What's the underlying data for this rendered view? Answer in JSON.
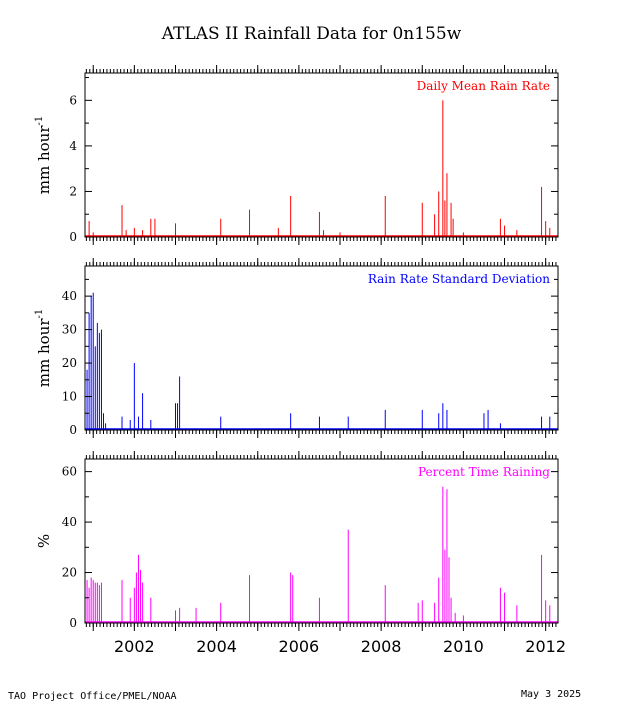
{
  "title": "ATLAS II Rainfall Data for 0n155w",
  "footer": {
    "left": "TAO Project Office/PMEL/NOAA",
    "right": "May  3 2025"
  },
  "chart_data": [
    {
      "type": "bar",
      "title": "Daily Mean Rain Rate",
      "ylabel": "mm hour",
      "ylabel_superscript": "-1",
      "color": "#ff0000",
      "ylim": [
        0,
        7.2
      ],
      "yticks": [
        0,
        2,
        4,
        6
      ],
      "xlim": [
        2000.8,
        2012.3
      ],
      "xticks": [
        "2002",
        "2004",
        "2006",
        "2008",
        "2010",
        "2012"
      ],
      "x": [
        2000.9,
        2001.0,
        2001.7,
        2001.8,
        2002.0,
        2002.2,
        2002.4,
        2002.5,
        2003.0,
        2004.1,
        2004.8,
        2005.5,
        2005.8,
        2006.5,
        2006.6,
        2007.0,
        2008.1,
        2009.0,
        2009.3,
        2009.4,
        2009.5,
        2009.55,
        2009.6,
        2009.7,
        2009.75,
        2010.0,
        2010.9,
        2011.0,
        2011.3,
        2011.9,
        2012.0,
        2012.1
      ],
      "values": [
        0.7,
        0.2,
        1.4,
        0.3,
        0.4,
        0.3,
        0.8,
        0.8,
        0.6,
        0.8,
        1.2,
        0.4,
        1.8,
        1.1,
        0.3,
        0.2,
        1.8,
        1.5,
        1.0,
        2.0,
        6.0,
        1.6,
        2.8,
        1.5,
        0.8,
        0.2,
        0.8,
        0.5,
        0.3,
        2.2,
        0.7,
        0.4
      ]
    },
    {
      "type": "bar",
      "title": "Rain Rate Standard Deviation",
      "ylabel": "mm hour",
      "ylabel_superscript": "-1",
      "color": "#0000ff",
      "ylim": [
        0,
        49
      ],
      "yticks": [
        0,
        10,
        20,
        30,
        40
      ],
      "xlim": [
        2000.8,
        2012.3
      ],
      "xticks": [
        "2002",
        "2004",
        "2006",
        "2008",
        "2010",
        "2012"
      ],
      "x": [
        2000.85,
        2000.9,
        2000.95,
        2001.0,
        2001.05,
        2001.1,
        2001.15,
        2001.2,
        2001.25,
        2001.3,
        2001.7,
        2001.9,
        2002.0,
        2002.1,
        2002.2,
        2002.4,
        2003.0,
        2003.05,
        2003.1,
        2004.1,
        2005.8,
        2006.5,
        2007.2,
        2008.1,
        2009.0,
        2009.4,
        2009.5,
        2009.6,
        2010.5,
        2010.6,
        2010.9,
        2011.9,
        2012.1
      ],
      "values": [
        18,
        35,
        40,
        41,
        25,
        32,
        29,
        30,
        5,
        2,
        4,
        3,
        20,
        4,
        11,
        3,
        8,
        8,
        16,
        4,
        5,
        4,
        4,
        6,
        6,
        5,
        8,
        6,
        5,
        6,
        2,
        4,
        4
      ]
    },
    {
      "type": "bar",
      "title": "Percent Time Raining",
      "ylabel": "%",
      "color": "#ff00ff",
      "ylim": [
        0,
        65
      ],
      "yticks": [
        0,
        20,
        40,
        60
      ],
      "xlim": [
        2000.8,
        2012.3
      ],
      "xticks": [
        "2002",
        "2004",
        "2006",
        "2008",
        "2010",
        "2012"
      ],
      "x": [
        2000.85,
        2000.9,
        2000.95,
        2001.0,
        2001.05,
        2001.1,
        2001.15,
        2001.2,
        2001.7,
        2001.9,
        2002.0,
        2002.05,
        2002.1,
        2002.15,
        2002.2,
        2002.4,
        2003.0,
        2003.1,
        2003.5,
        2004.1,
        2004.8,
        2005.8,
        2005.85,
        2006.5,
        2007.2,
        2008.1,
        2008.9,
        2009.0,
        2009.3,
        2009.4,
        2009.5,
        2009.55,
        2009.6,
        2009.65,
        2009.7,
        2009.8,
        2010.0,
        2010.9,
        2011.0,
        2011.3,
        2011.9,
        2012.0,
        2012.1
      ],
      "values": [
        17,
        14,
        18,
        17,
        16,
        16,
        15,
        16,
        17,
        10,
        14,
        20,
        27,
        21,
        16,
        10,
        5,
        6,
        6,
        8,
        19,
        20,
        19,
        10,
        37,
        15,
        8,
        9,
        8,
        18,
        54,
        29,
        53,
        26,
        10,
        4,
        3,
        14,
        12,
        7,
        27,
        9,
        7
      ]
    }
  ]
}
